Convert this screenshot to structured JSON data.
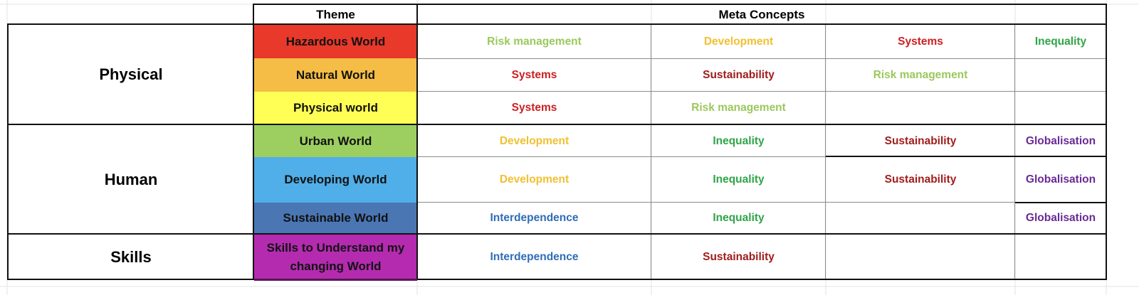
{
  "colors": {
    "risk": "#9bc85c",
    "development": "#f0c030",
    "systems": "#cc1f1f",
    "inequality": "#2fa548",
    "sustainability": "#a01d1d",
    "globalisation": "#6a2a94",
    "interdependence": "#2f6db5"
  },
  "header": {
    "theme": "Theme",
    "meta": "Meta Concepts"
  },
  "categories": {
    "physical": "Physical",
    "human": "Human",
    "skills": "Skills"
  },
  "themes": [
    {
      "label": "Hazardous World",
      "color": "#e8392a"
    },
    {
      "label": "Natural World",
      "color": "#f5bd45"
    },
    {
      "label": "Physical world",
      "color": "#ffff55"
    },
    {
      "label": "Urban World",
      "color": "#9ccf60"
    },
    {
      "label": "Developing World",
      "color": "#50aee8"
    },
    {
      "label": "Sustainable World",
      "color": "#4a76b4"
    },
    {
      "label": "Skills to Understand my changing World",
      "color": "#b42bb0"
    }
  ],
  "concepts": [
    [
      "Risk management",
      "Development",
      "Systems",
      "Inequality"
    ],
    [
      "Systems",
      "Sustainability",
      "Risk management",
      ""
    ],
    [
      "Systems",
      "Risk management",
      "",
      ""
    ],
    [
      "Development",
      "Inequality",
      "Sustainability",
      "Globalisation"
    ],
    [
      "Development",
      "Inequality",
      "Sustainability",
      "Globalisation"
    ],
    [
      "Interdependence",
      "Inequality",
      "",
      "Globalisation"
    ],
    [
      "Interdependence",
      "Sustainability",
      "",
      ""
    ]
  ]
}
